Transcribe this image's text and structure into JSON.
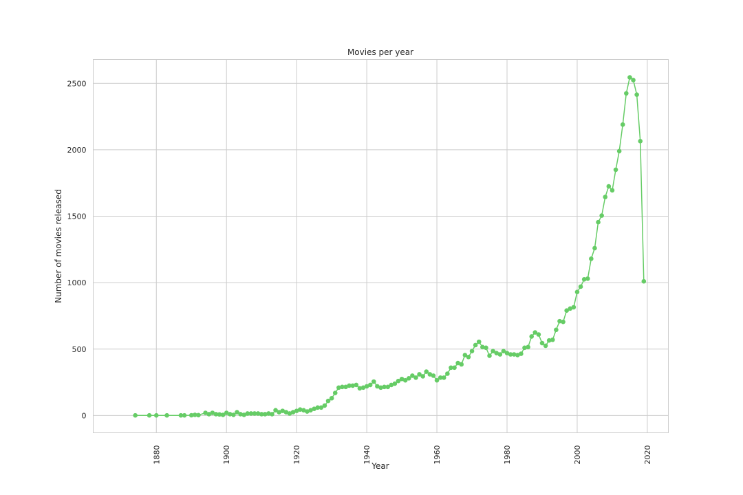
{
  "chart_data": {
    "type": "line",
    "title": "Movies per year",
    "xlabel": "Year",
    "ylabel": "Number of movies released",
    "xlim": [
      1862,
      2026
    ],
    "ylim": [
      -130,
      2680
    ],
    "xticks": [
      1880,
      1900,
      1920,
      1940,
      1960,
      1980,
      2000,
      2020
    ],
    "yticks": [
      0,
      500,
      1000,
      1500,
      2000,
      2500
    ],
    "grid": true,
    "legend": "none",
    "color": "#66cc66",
    "marker": "circle",
    "series": [
      {
        "x": [
          1874,
          1878,
          1880,
          1883,
          1887,
          1888,
          1890,
          1891,
          1892,
          1894,
          1895,
          1896,
          1897,
          1898,
          1899,
          1900,
          1901,
          1902,
          1903,
          1904,
          1905,
          1906,
          1907,
          1908,
          1909,
          1910,
          1911,
          1912,
          1913,
          1914,
          1915,
          1916,
          1917,
          1918,
          1919,
          1920,
          1921,
          1922,
          1923,
          1924,
          1925,
          1926,
          1927,
          1928,
          1929,
          1930,
          1931,
          1932,
          1933,
          1934,
          1935,
          1936,
          1937,
          1938,
          1939,
          1940,
          1941,
          1942,
          1943,
          1944,
          1945,
          1946,
          1947,
          1948,
          1949,
          1950,
          1951,
          1952,
          1953,
          1954,
          1955,
          1956,
          1957,
          1958,
          1959,
          1960,
          1961,
          1962,
          1963,
          1964,
          1965,
          1966,
          1967,
          1968,
          1969,
          1970,
          1971,
          1972,
          1973,
          1974,
          1975,
          1976,
          1977,
          1978,
          1979,
          1980,
          1981,
          1982,
          1983,
          1984,
          1985,
          1986,
          1987,
          1988,
          1989,
          1990,
          1991,
          1992,
          1993,
          1994,
          1995,
          1996,
          1997,
          1998,
          1999,
          2000,
          2001,
          2002,
          2003,
          2004,
          2005,
          2006,
          2007,
          2008,
          2009,
          2010,
          2011,
          2012,
          2013,
          2014,
          2015,
          2016,
          2017,
          2018,
          2019
        ],
        "values": [
          1,
          1,
          1,
          1,
          1,
          1,
          2,
          5,
          3,
          20,
          10,
          20,
          10,
          8,
          5,
          20,
          10,
          5,
          25,
          10,
          5,
          15,
          15,
          15,
          15,
          10,
          10,
          15,
          10,
          40,
          25,
          35,
          25,
          15,
          25,
          35,
          45,
          40,
          30,
          40,
          50,
          60,
          60,
          75,
          110,
          130,
          170,
          210,
          215,
          215,
          225,
          225,
          230,
          205,
          210,
          220,
          230,
          255,
          220,
          210,
          215,
          215,
          230,
          240,
          260,
          275,
          265,
          280,
          300,
          285,
          310,
          295,
          330,
          310,
          300,
          265,
          285,
          285,
          315,
          360,
          360,
          395,
          385,
          455,
          440,
          485,
          530,
          555,
          515,
          510,
          450,
          485,
          470,
          460,
          485,
          470,
          460,
          460,
          455,
          465,
          510,
          515,
          595,
          625,
          610,
          545,
          525,
          565,
          570,
          645,
          710,
          705,
          790,
          805,
          815,
          930,
          970,
          1025,
          1030,
          1180,
          1260,
          1455,
          1505,
          1645,
          1725,
          1695,
          1850,
          1990,
          2190,
          2425,
          2545,
          2525,
          2415,
          2065,
          1010
        ]
      }
    ]
  }
}
